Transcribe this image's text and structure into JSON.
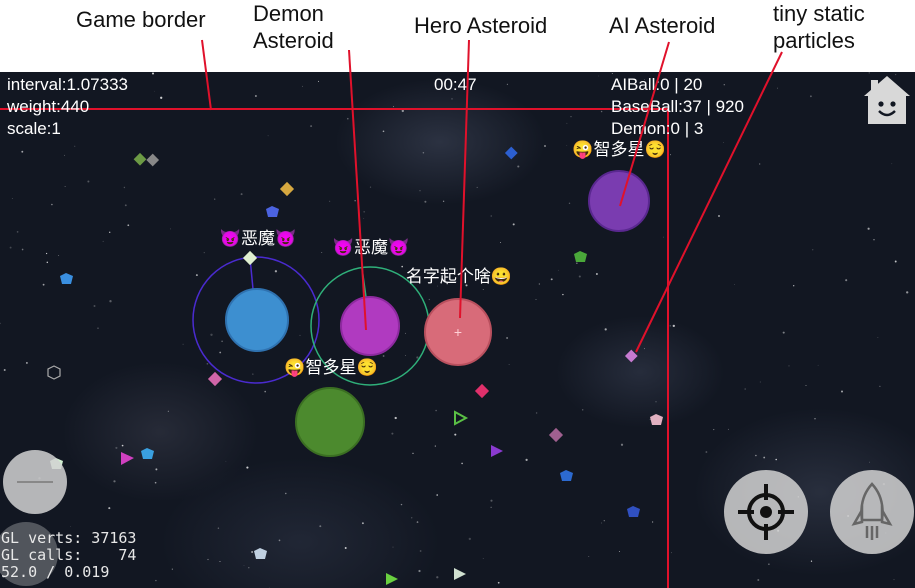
{
  "annotations": {
    "game_border": "Game border",
    "demon_asteroid_line1": "Demon",
    "demon_asteroid_line2": "Asteroid",
    "hero_asteroid": "Hero Asteroid",
    "ai_asteroid": "AI Asteroid",
    "particles_line1": "tiny static",
    "particles_line2": "particles"
  },
  "hud": {
    "interval": "interval:1.07333",
    "weight": "weight:440",
    "scale": "scale:1",
    "timer": "00:47",
    "ai_ball": "AIBall:0 | 20",
    "base_ball": "BaseBall:37 | 920",
    "demon": "Demon:0 | 3"
  },
  "debug": {
    "gl_verts": "GL verts: 37163",
    "gl_calls": "GL calls:    74",
    "fps": "52.0 / 0.019"
  },
  "player_names": {
    "demon_left": "😈恶魔😈",
    "demon_center": "😈恶魔😈",
    "hero": "名字起个啥😀",
    "ai_top": "😜智多星😌",
    "ai_mid": "😜智多星😌"
  },
  "icons": {
    "home": "home-icon",
    "minus": "minus-icon",
    "crosshair": "crosshair-icon",
    "rocket": "rocket-icon"
  },
  "colors": {
    "border_line": "#e0112b",
    "demon_blue": "#3d8fd0",
    "demon_magenta": "#b03ac0",
    "hero": "#d86b79",
    "ai_purple": "#7a3cb0",
    "green_ball": "#4c8a2e",
    "background": "#121722"
  }
}
